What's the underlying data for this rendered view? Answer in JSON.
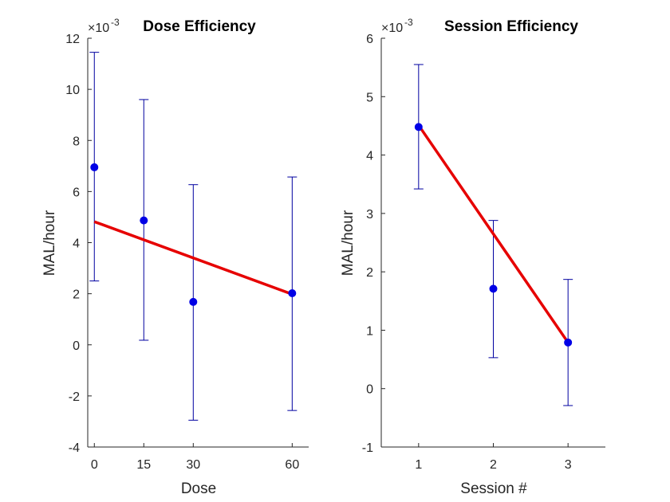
{
  "chart_data": [
    {
      "type": "scatter",
      "title": "Dose Efficiency",
      "xlabel": "Dose",
      "ylabel": "MAL/hour",
      "y_exponent_base": "×10",
      "y_exponent_power": "-3",
      "xlim": [
        -2,
        65
      ],
      "ylim": [
        -4,
        12
      ],
      "x_ticks": [
        0,
        15,
        30,
        60
      ],
      "y_ticks": [
        -4,
        -2,
        0,
        2,
        4,
        6,
        8,
        10,
        12
      ],
      "points": [
        {
          "x": 0,
          "y": 6.95,
          "err_low": 2.5,
          "err_high": 11.45
        },
        {
          "x": 15,
          "y": 4.87,
          "err_low": 0.18,
          "err_high": 9.6
        },
        {
          "x": 30,
          "y": 1.68,
          "err_low": -2.95,
          "err_high": 6.27
        },
        {
          "x": 60,
          "y": 2.02,
          "err_low": -2.57,
          "err_high": 6.57
        }
      ],
      "fit_line": {
        "x": [
          0,
          60
        ],
        "y": [
          4.82,
          1.98
        ]
      },
      "colors": {
        "points": "#0000e6",
        "errorbars": "#0000a0",
        "fit": "#e60000"
      }
    },
    {
      "type": "scatter",
      "title": "Session Efficiency",
      "xlabel": "Session #",
      "ylabel": "MAL/hour",
      "y_exponent_base": "×10",
      "y_exponent_power": "-3",
      "xlim": [
        0.5,
        3.5
      ],
      "ylim": [
        -1,
        6
      ],
      "x_ticks": [
        1,
        2,
        3
      ],
      "y_ticks": [
        -1,
        0,
        1,
        2,
        3,
        4,
        5,
        6
      ],
      "points": [
        {
          "x": 1,
          "y": 4.48,
          "err_low": 3.42,
          "err_high": 5.55
        },
        {
          "x": 2,
          "y": 1.71,
          "err_low": 0.53,
          "err_high": 2.88
        },
        {
          "x": 3,
          "y": 0.79,
          "err_low": -0.29,
          "err_high": 1.87
        }
      ],
      "fit_line": {
        "x": [
          1,
          3
        ],
        "y": [
          4.51,
          0.79
        ]
      },
      "colors": {
        "points": "#0000e6",
        "errorbars": "#0000a0",
        "fit": "#e60000"
      }
    }
  ]
}
